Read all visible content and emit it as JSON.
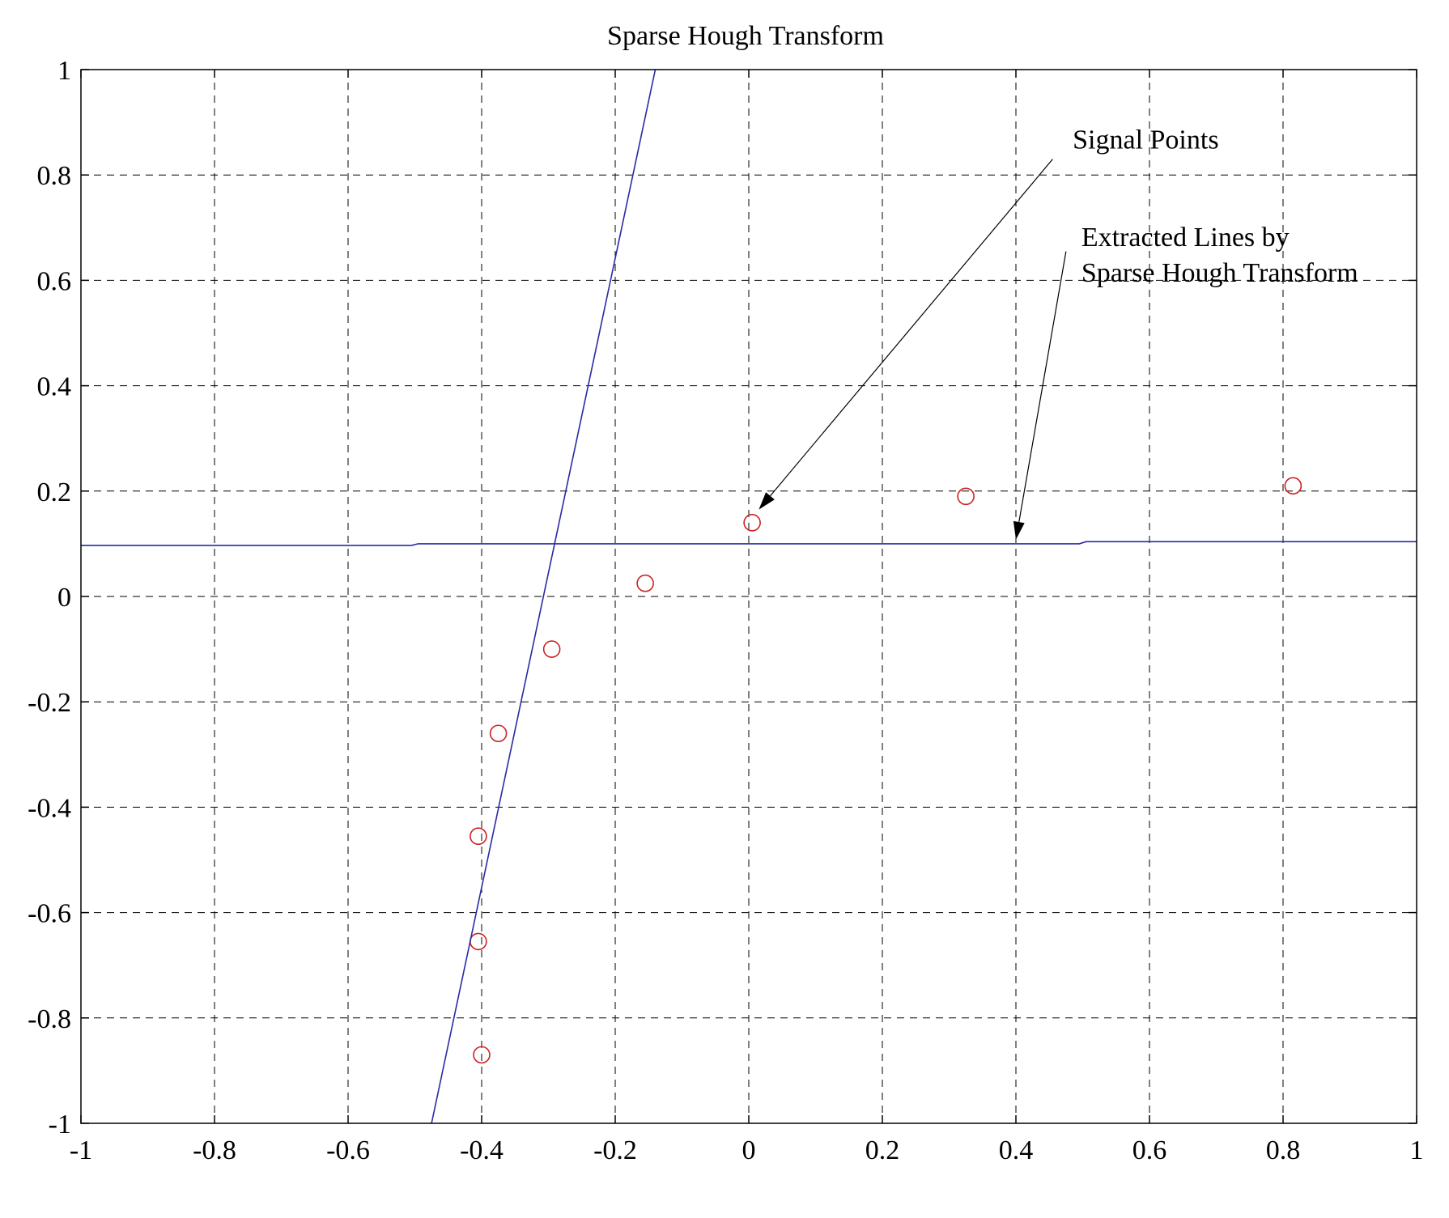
{
  "chart_data": {
    "type": "scatter",
    "title": "Sparse Hough Transform",
    "xlabel": "",
    "ylabel": "",
    "xlim": [
      -1,
      1
    ],
    "ylim": [
      -1,
      1
    ],
    "grid": true,
    "x_ticks": [
      -1,
      -0.8,
      -0.6,
      -0.4,
      -0.2,
      0,
      0.2,
      0.4,
      0.6,
      0.8,
      1
    ],
    "x_tick_labels": [
      "-1",
      "-0.8",
      "-0.6",
      "-0.4",
      "-0.2",
      "0",
      "0.2",
      "0.4",
      "0.6",
      "0.8",
      "1"
    ],
    "y_ticks": [
      1,
      0.8,
      0.6,
      0.4,
      0.2,
      0,
      -0.2,
      -0.4,
      -0.6,
      -0.8,
      -1
    ],
    "y_tick_labels": [
      "1",
      "0.8",
      "0.6",
      "0.4",
      "0.2",
      "0",
      "-0.2",
      "-0.4",
      "-0.6",
      "-0.8",
      "-1"
    ],
    "series": [
      {
        "kind": "points",
        "marker": "open-circle",
        "color": "#cc2222",
        "points": [
          {
            "x": 0.005,
            "y": 0.14
          },
          {
            "x": 0.325,
            "y": 0.19
          },
          {
            "x": 0.815,
            "y": 0.21
          },
          {
            "x": -0.155,
            "y": 0.025
          },
          {
            "x": -0.295,
            "y": -0.1
          },
          {
            "x": -0.375,
            "y": -0.26
          },
          {
            "x": -0.405,
            "y": -0.455
          },
          {
            "x": -0.405,
            "y": -0.655
          },
          {
            "x": -0.4,
            "y": -0.87
          }
        ]
      },
      {
        "kind": "line",
        "color": "#2a2aa6",
        "points": [
          {
            "x": -0.475,
            "y": -1.0
          },
          {
            "x": -0.14,
            "y": 1.0
          }
        ]
      },
      {
        "kind": "line",
        "color": "#2a2aa6",
        "points": [
          {
            "x": -1.0,
            "y": 0.097
          },
          {
            "x": -0.505,
            "y": 0.097
          },
          {
            "x": -0.495,
            "y": 0.1
          },
          {
            "x": 0.495,
            "y": 0.1
          },
          {
            "x": 0.505,
            "y": 0.104
          },
          {
            "x": 1.0,
            "y": 0.104
          }
        ]
      }
    ],
    "annotations": [
      {
        "text": [
          "Signal Points"
        ],
        "text_at": {
          "x": 0.485,
          "y": 0.85
        },
        "arrow_from": {
          "x": 0.455,
          "y": 0.83
        },
        "arrow_to": {
          "x": 0.015,
          "y": 0.165
        }
      },
      {
        "text": [
          "Extracted Lines by",
          "Sparse Hough Transform"
        ],
        "text_at": {
          "x": 0.498,
          "y": 0.665
        },
        "arrow_from": {
          "x": 0.475,
          "y": 0.655
        },
        "arrow_to": {
          "x": 0.4,
          "y": 0.108
        }
      }
    ]
  }
}
